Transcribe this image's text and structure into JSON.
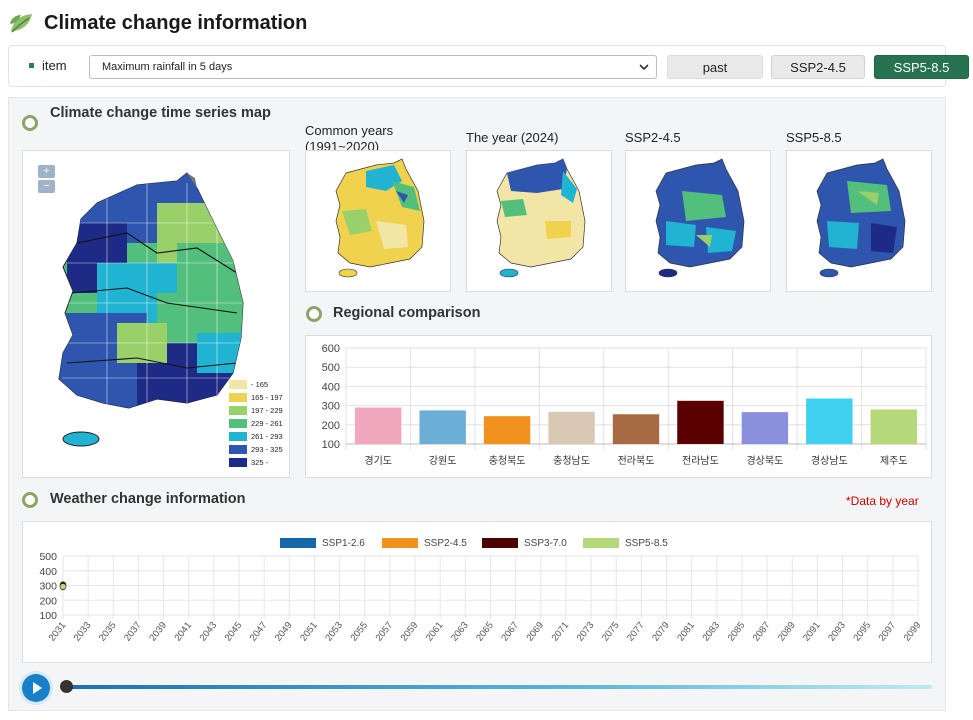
{
  "header": {
    "title": "Climate change information"
  },
  "filter": {
    "item_label": "item",
    "selected": "Maximum rainfall in 5 days",
    "buttons": {
      "past": "past",
      "ssp245": "SSP2-4.5",
      "ssp585": "SSP5-8.5"
    }
  },
  "timeseries": {
    "title": "Climate change time series map",
    "zoom_in": "+",
    "zoom_out": "−",
    "legend": [
      {
        "label": "- 165",
        "color": "#f2e6a6"
      },
      {
        "label": "165 - 197",
        "color": "#f0d24e"
      },
      {
        "label": "197 - 229",
        "color": "#9ad06a"
      },
      {
        "label": "229 - 261",
        "color": "#53bf7d"
      },
      {
        "label": "261 - 293",
        "color": "#20b3d2"
      },
      {
        "label": "293 - 325",
        "color": "#2e56ae"
      },
      {
        "label": "325 -",
        "color": "#1d2a86"
      }
    ],
    "maps": [
      {
        "title": "Common years (1991~2020)"
      },
      {
        "title": "The year (2024)"
      },
      {
        "title": "SSP2-4.5"
      },
      {
        "title": "SSP5-8.5"
      }
    ]
  },
  "regional": {
    "title": "Regional comparison",
    "chart_data": {
      "type": "bar",
      "categories": [
        "경기도",
        "강원도",
        "충청북도",
        "충청남도",
        "전라북도",
        "전라남도",
        "경상북도",
        "경상남도",
        "제주도"
      ],
      "values": [
        290,
        275,
        245,
        268,
        255,
        325,
        266,
        337,
        280
      ],
      "colors": [
        "#f1a7bd",
        "#6baed6",
        "#f0901d",
        "#d9c8b4",
        "#a86a43",
        "#5a0000",
        "#8b90dc",
        "#3fd0f0",
        "#b5d97a"
      ],
      "yticks": [
        100,
        200,
        300,
        400,
        500,
        600
      ],
      "ylim": [
        100,
        600
      ]
    }
  },
  "weather": {
    "title": "Weather change information",
    "note": "*Data by year",
    "chart_data": {
      "type": "line",
      "series": [
        {
          "name": "SSP1-2.6",
          "color": "#1667a7",
          "x": [
            2031
          ],
          "values": [
            290
          ]
        },
        {
          "name": "SSP2-4.5",
          "color": "#f0901d",
          "x": [
            2031
          ],
          "values": [
            298
          ]
        },
        {
          "name": "SSP3-7.0",
          "color": "#4d0000",
          "x": [
            2031
          ],
          "values": [
            305
          ]
        },
        {
          "name": "SSP5-8.5",
          "color": "#b5d97a",
          "x": [
            2031
          ],
          "values": [
            293
          ]
        }
      ],
      "yticks": [
        100,
        200,
        300,
        400,
        500
      ],
      "ylim": [
        100,
        500
      ],
      "xticks": [
        2031,
        2033,
        2035,
        2037,
        2039,
        2041,
        2043,
        2045,
        2047,
        2049,
        2051,
        2053,
        2055,
        2057,
        2059,
        2061,
        2063,
        2065,
        2067,
        2069,
        2071,
        2073,
        2075,
        2077,
        2079,
        2081,
        2083,
        2085,
        2087,
        2089,
        2091,
        2093,
        2095,
        2097,
        2099
      ]
    }
  },
  "player": {
    "play_icon": "play-icon"
  }
}
